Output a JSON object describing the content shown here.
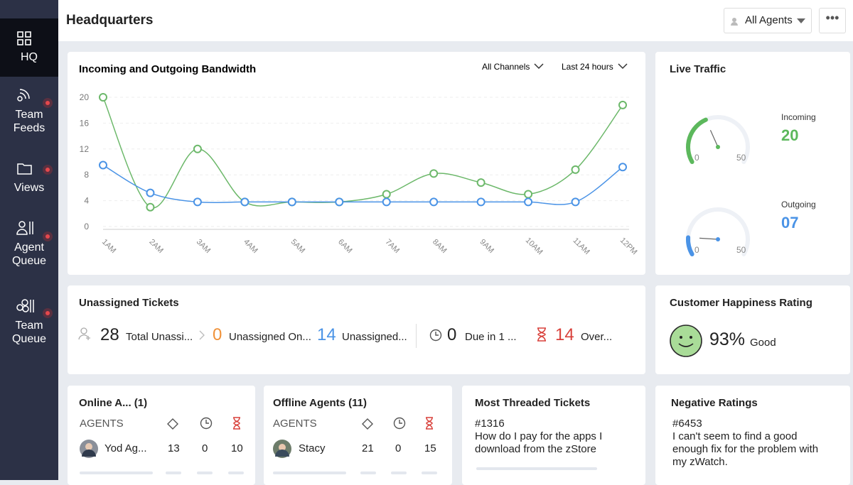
{
  "header": {
    "title": "Headquarters",
    "agent_filter": "All Agents"
  },
  "sidebar": {
    "items": [
      {
        "lines": [
          "HQ"
        ]
      },
      {
        "lines": [
          "Team",
          "Feeds"
        ]
      },
      {
        "lines": [
          "Views"
        ]
      },
      {
        "lines": [
          "Agent",
          "Queue"
        ]
      },
      {
        "lines": [
          "Team",
          "Queue"
        ]
      }
    ]
  },
  "chart_data": {
    "type": "line",
    "title": "Incoming and Outgoing Bandwidth",
    "filters": [
      "All Channels",
      "Last 24 hours"
    ],
    "categories": [
      "1AM",
      "2AM",
      "3AM",
      "4AM",
      "5AM",
      "6AM",
      "7AM",
      "8AM",
      "9AM",
      "10AM",
      "11AM",
      "12PM"
    ],
    "series": [
      {
        "color": "#6cb86a",
        "values": [
          20,
          3,
          12,
          3.8,
          3.8,
          3.8,
          5,
          8.2,
          6.8,
          5,
          8.8,
          18.8
        ]
      },
      {
        "color": "#4a93e6",
        "values": [
          9.5,
          5.2,
          3.8,
          3.8,
          3.8,
          3.8,
          3.8,
          3.8,
          3.8,
          3.8,
          3.8,
          9.2
        ]
      }
    ],
    "ylim": [
      0,
      20
    ],
    "yticks": [
      0,
      4,
      8,
      12,
      16,
      20
    ],
    "grid": true
  },
  "live_traffic": {
    "title": "Live Traffic",
    "gauges": [
      {
        "label": "Incoming",
        "value": 20,
        "value_label": "20",
        "min": 0,
        "max": 50,
        "color": "#5cb85c"
      },
      {
        "label": "Outgoing",
        "value": 7,
        "value_label": "07",
        "min": 0,
        "max": 50,
        "color": "#4a93e6"
      }
    ]
  },
  "unassigned": {
    "title": "Unassigned Tickets",
    "stats": [
      {
        "value": "28",
        "label": "Total Unassi..."
      },
      {
        "value": "0",
        "label": "Unassigned On..."
      },
      {
        "value": "14",
        "label": "Unassigned..."
      },
      {
        "value": "0",
        "label": "Due in 1 ..."
      },
      {
        "value": "14",
        "label": "Over..."
      }
    ]
  },
  "happiness": {
    "title": "Customer Happiness Rating",
    "value": "93%",
    "label": "Good"
  },
  "online_agents": {
    "title": "Online A... (1)",
    "header": "AGENTS",
    "rows": [
      {
        "name": "Yod Ag...",
        "values": [
          "13",
          "0",
          "10"
        ]
      }
    ]
  },
  "offline_agents": {
    "title": "Offline Agents (11)",
    "header": "AGENTS",
    "rows": [
      {
        "name": "Stacy",
        "values": [
          "21",
          "0",
          "15"
        ]
      }
    ]
  },
  "threaded": {
    "title": "Most Threaded Tickets",
    "id": "#1316",
    "text": "How do I pay for the apps I download from the zStore"
  },
  "negative": {
    "title": "Negative Ratings",
    "id": "#6453",
    "text": "I can't seem to find a good enough fix for the problem with my zWatch."
  }
}
